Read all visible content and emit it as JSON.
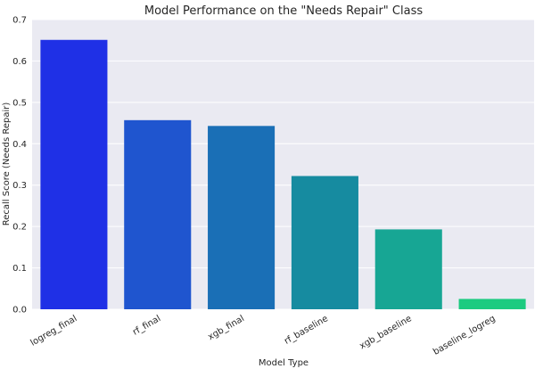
{
  "chart_data": {
    "type": "bar",
    "title": "Model Performance on the \"Needs Repair\" Class",
    "xlabel": "Model Type",
    "ylabel": "Recall Score (Needs Repair)",
    "categories": [
      "logreg_final",
      "rf_final",
      "xgb_final",
      "rf_baseline",
      "xgb_baseline",
      "baseline_logreg"
    ],
    "values": [
      0.651,
      0.457,
      0.443,
      0.322,
      0.193,
      0.025
    ],
    "ylim": [
      0,
      0.7
    ],
    "yticks": [
      0.0,
      0.1,
      0.2,
      0.3,
      0.4,
      0.5,
      0.6,
      0.7
    ],
    "ytick_labels": [
      "0.0",
      "0.1",
      "0.2",
      "0.3",
      "0.4",
      "0.5",
      "0.6",
      "0.7"
    ],
    "grid": true,
    "style": "seaborn darkgrid",
    "colors": {
      "plot_background": "#EAEAF2",
      "grid": "#ffffff",
      "text": "#262626",
      "bars": [
        "#1f30e6",
        "#1f55cf",
        "#1a6fb6",
        "#168ba0",
        "#17a694",
        "#1ccb80"
      ]
    },
    "tick_rotation_degrees": 30
  }
}
